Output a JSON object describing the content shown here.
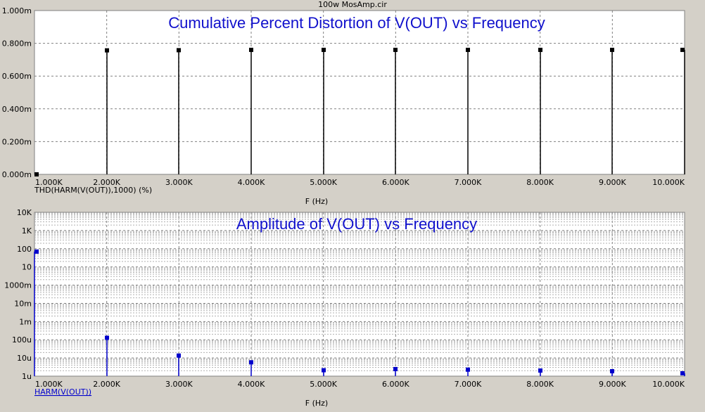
{
  "window_title": "100w MosAmp.cir",
  "chart_data": [
    {
      "type": "bar",
      "title": "Cumulative Percent Distortion of V(OUT) vs Frequency",
      "xlabel": "F (Hz)",
      "ylabel": "THD(HARM(V(OUT)),1000) (%)",
      "x": [
        1000,
        2000,
        3000,
        4000,
        5000,
        6000,
        7000,
        8000,
        9000,
        10000
      ],
      "values": [
        0,
        0.000757,
        0.000758,
        0.00076,
        0.00076,
        0.00076,
        0.00076,
        0.00076,
        0.00076,
        0.00076
      ],
      "xlim": [
        1000,
        10000
      ],
      "ylim": [
        0,
        0.001
      ],
      "x_ticks": [
        "1.000K",
        "2.000K",
        "3.000K",
        "4.000K",
        "5.000K",
        "6.000K",
        "7.000K",
        "8.000K",
        "9.000K",
        "10.000K"
      ],
      "y_ticks": [
        "0.000m",
        "0.200m",
        "0.400m",
        "0.600m",
        "0.800m",
        "1.000m"
      ],
      "grid": true,
      "color": "#000000"
    },
    {
      "type": "bar",
      "title": "Amplitude of V(OUT) vs Frequency",
      "xlabel": "F (Hz)",
      "ylabel": "HARM(V(OUT))",
      "y_scale": "log",
      "x": [
        1000,
        2000,
        3000,
        4000,
        5000,
        6000,
        7000,
        8000,
        9000,
        10000
      ],
      "values": [
        40,
        0.00022,
        1.8e-05,
        7e-06,
        2.3e-06,
        2.7e-06,
        2.5e-06,
        2.2e-06,
        2e-06,
        1.5e-06
      ],
      "xlim": [
        1000,
        10000
      ],
      "ylim": [
        1e-06,
        10000
      ],
      "x_ticks": [
        "1.000K",
        "2.000K",
        "3.000K",
        "4.000K",
        "5.000K",
        "6.000K",
        "7.000K",
        "8.000K",
        "9.000K",
        "10.000K"
      ],
      "y_ticks": [
        "1u",
        "10u",
        "100u",
        "1m",
        "10m",
        "1000m",
        "10",
        "100",
        "1K",
        "10K"
      ],
      "grid": true,
      "color": "#0000cc"
    }
  ]
}
